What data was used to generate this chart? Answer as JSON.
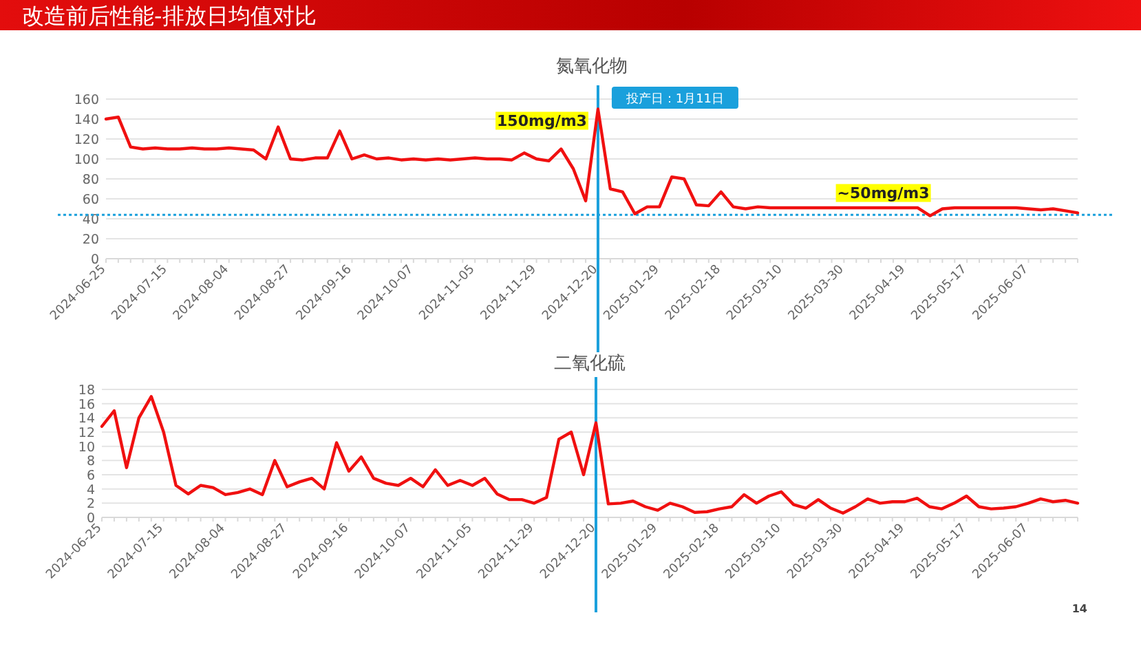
{
  "chart_data": [
    {
      "type": "line",
      "title": "氮氧化物",
      "grid": "y",
      "marker": "none",
      "line_style": "solid",
      "categories": [
        "2024-06-25",
        null,
        null,
        null,
        null,
        "2024-07-15",
        null,
        null,
        null,
        null,
        "2024-08-04",
        null,
        null,
        null,
        null,
        "2024-08-27",
        null,
        null,
        null,
        null,
        "2024-09-16",
        null,
        null,
        null,
        null,
        "2024-10-07",
        null,
        null,
        null,
        null,
        "2024-11-05",
        null,
        null,
        null,
        null,
        "2024-11-29",
        null,
        null,
        null,
        null,
        "2024-12-20",
        null,
        null,
        null,
        null,
        "2025-01-29",
        null,
        null,
        null,
        null,
        "2025-02-18",
        null,
        null,
        null,
        null,
        "2025-03-10",
        null,
        null,
        null,
        null,
        "2025-03-30",
        null,
        null,
        null,
        null,
        "2025-04-19",
        null,
        null,
        null,
        null,
        "2025-05-17",
        null,
        null,
        null,
        null,
        "2025-06-07",
        null,
        null,
        null,
        null
      ],
      "series": [
        {
          "color": "#f01010",
          "values": [
            140,
            142,
            112,
            110,
            111,
            110,
            110,
            111,
            110,
            110,
            111,
            110,
            109,
            100,
            132,
            100,
            99,
            101,
            101,
            128,
            100,
            104,
            100,
            101,
            99,
            100,
            99,
            100,
            99,
            100,
            101,
            100,
            100,
            99,
            106,
            100,
            98,
            110,
            90,
            58,
            150,
            70,
            67,
            45,
            52,
            52,
            82,
            80,
            54,
            53,
            67,
            52,
            50,
            52,
            51,
            51,
            51,
            51,
            51,
            51,
            51,
            51,
            51,
            51,
            51,
            51,
            51,
            43,
            50,
            51,
            51,
            51,
            51,
            51,
            51,
            50,
            49,
            50,
            48,
            46
          ]
        }
      ],
      "ylim": [
        0,
        160
      ],
      "yticks": [
        0,
        20,
        40,
        60,
        80,
        100,
        120,
        140,
        160
      ],
      "ref_lines": [
        {
          "axis": "x",
          "value": "2024-12-20",
          "label": "投产日：1月11日",
          "color": "#1aa0dc",
          "line_style": "solid"
        },
        {
          "axis": "y",
          "value": 44,
          "color": "#1aa0dc",
          "line_style": "dotted"
        }
      ],
      "annotations": [
        "改造前后性能-排放日均值对比",
        {
          "text": "150mg/m3",
          "x": "2024-12-20",
          "y": 150
        },
        {
          "text": "~50mg/m3",
          "y": 50
        }
      ]
    },
    {
      "type": "line",
      "title": "二氧化硫",
      "grid": "y",
      "marker": "none",
      "line_style": "solid",
      "categories": [
        "2024-06-25",
        null,
        null,
        null,
        null,
        "2024-07-15",
        null,
        null,
        null,
        null,
        "2024-08-04",
        null,
        null,
        null,
        null,
        "2024-08-27",
        null,
        null,
        null,
        null,
        "2024-09-16",
        null,
        null,
        null,
        null,
        "2024-10-07",
        null,
        null,
        null,
        null,
        "2024-11-05",
        null,
        null,
        null,
        null,
        "2024-11-29",
        null,
        null,
        null,
        null,
        "2024-12-20",
        null,
        null,
        null,
        null,
        "2025-01-29",
        null,
        null,
        null,
        null,
        "2025-02-18",
        null,
        null,
        null,
        null,
        "2025-03-10",
        null,
        null,
        null,
        null,
        "2025-03-30",
        null,
        null,
        null,
        null,
        "2025-04-19",
        null,
        null,
        null,
        null,
        "2025-05-17",
        null,
        null,
        null,
        null,
        "2025-06-07",
        null,
        null,
        null,
        null
      ],
      "series": [
        {
          "color": "#f01010",
          "values": [
            12.8,
            15,
            7,
            14,
            17,
            12,
            4.5,
            3.3,
            4.5,
            4.2,
            3.2,
            3.5,
            4,
            3.2,
            8,
            4.3,
            5,
            5.5,
            4,
            10.5,
            6.5,
            8.5,
            5.5,
            4.8,
            4.5,
            5.5,
            4.3,
            6.7,
            4.5,
            5.2,
            4.5,
            5.5,
            3.3,
            2.5,
            2.5,
            2,
            2.8,
            11,
            12,
            6,
            13.3,
            1.9,
            2,
            2.3,
            1.5,
            1,
            2,
            1.5,
            0.7,
            0.8,
            1.2,
            1.5,
            3.2,
            2,
            3,
            3.6,
            1.8,
            1.3,
            2.5,
            1.3,
            0.6,
            1.5,
            2.6,
            2,
            2.2,
            2.2,
            2.7,
            1.5,
            1.2,
            2,
            3,
            1.5,
            1.2,
            1.3,
            1.5,
            2,
            2.6,
            2.2,
            2.4,
            2
          ]
        }
      ],
      "ylim": [
        0,
        18
      ],
      "yticks": [
        0,
        2,
        4,
        6,
        8,
        10,
        12,
        14,
        16,
        18
      ],
      "ref_lines": [
        {
          "axis": "x",
          "value": "2024-12-20",
          "color": "#1aa0dc",
          "line_style": "solid"
        }
      ],
      "annotations": [
        "14"
      ]
    }
  ]
}
